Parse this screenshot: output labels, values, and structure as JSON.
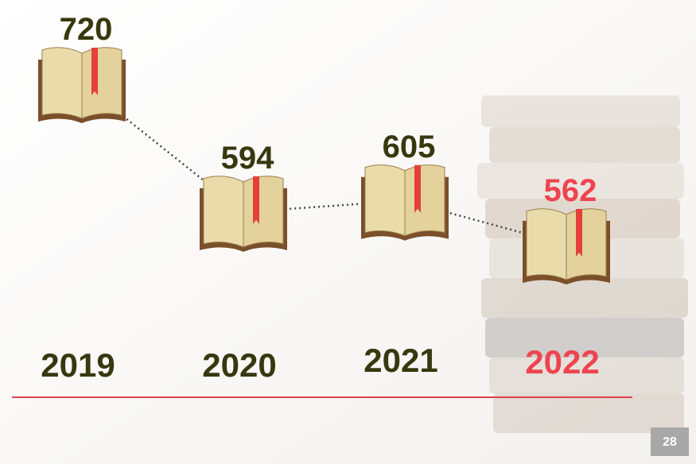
{
  "chart_data": {
    "type": "line",
    "categories": [
      "2019",
      "2020",
      "2021",
      "2022"
    ],
    "values": [
      720,
      594,
      605,
      562
    ],
    "point_colors": [
      "#38380f",
      "#38380f",
      "#38380f",
      "#ee4450"
    ],
    "line_color": "#444444",
    "baseline_color": "#e0404a",
    "page_number": 28
  }
}
